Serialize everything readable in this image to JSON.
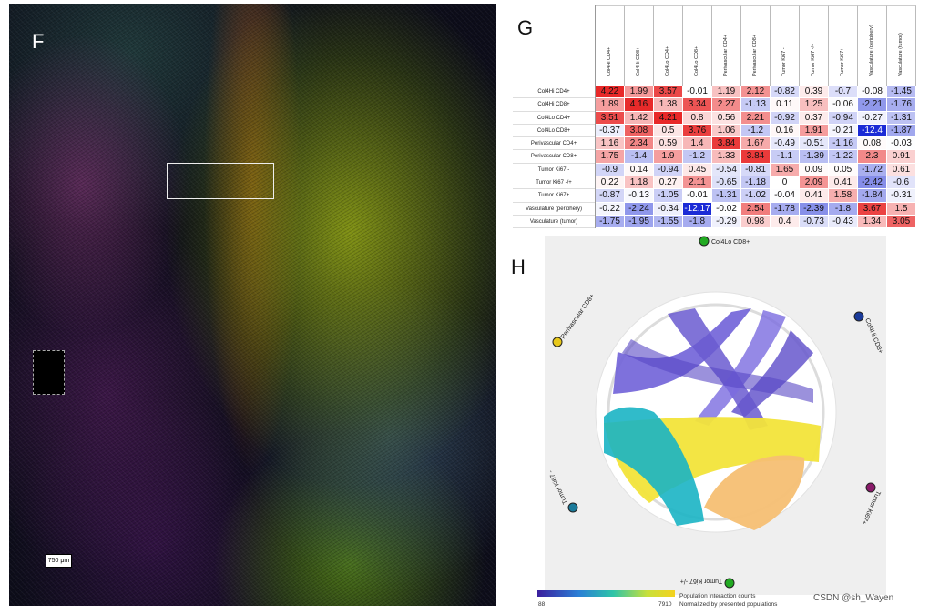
{
  "panel_f": {
    "letter": "F",
    "scale_bar": "750 μm"
  },
  "panel_g": {
    "letter": "G",
    "columns": [
      "Col4Hi CD4+",
      "Col4Hi CD8+",
      "Col4Lo CD4+",
      "Col4Lo CD8+",
      "Perivascular CD4+",
      "Perivascular CD8+",
      "Tumor Ki67 -",
      "Tumor Ki67 -/+",
      "Tumor Ki67+",
      "Vasculature (periphery)",
      "Vasculature (tumor)"
    ],
    "rows": [
      "Col4Hi CD4+",
      "Col4Hi CD8+",
      "Col4Lo CD4+",
      "Col4Lo CD8+",
      "Perivascular CD4+",
      "Perivascular CD8+",
      "Tumor Ki67 -",
      "Tumor Ki67 -/+",
      "Tumor Ki67+",
      "Vasculature (periphery)",
      "Vasculature (tumor)"
    ],
    "values": [
      [
        "4.22",
        "1.99",
        "3.57",
        "-0.01",
        "1.19",
        "2.12",
        "-0.82",
        "0.39",
        "-0.7",
        "-0.08",
        "-1.45"
      ],
      [
        "1.89",
        "4.16",
        "1.38",
        "3.34",
        "2.27",
        "-1.13",
        "0.11",
        "1.25",
        "-0.06",
        "-2.21",
        "-1.76"
      ],
      [
        "3.51",
        "1.42",
        "4.21",
        "0.8",
        "0.56",
        "2.21",
        "-0.92",
        "0.37",
        "-0.94",
        "-0.27",
        "-1.31"
      ],
      [
        "-0.37",
        "3.08",
        "0.5",
        "3.76",
        "1.06",
        "-1.2",
        "0.16",
        "1.91",
        "-0.21",
        "-12.4",
        "-1.87"
      ],
      [
        "1.16",
        "2.34",
        "0.59",
        "1.4",
        "3.84",
        "1.67",
        "-0.49",
        "-0.51",
        "-1.16",
        "0.08",
        "-0.03"
      ],
      [
        "1.75",
        "-1.4",
        "1.9",
        "-1.2",
        "1.33",
        "3.84",
        "-1.1",
        "-1.39",
        "-1.22",
        "2.3",
        "0.91"
      ],
      [
        "-0.9",
        "0.14",
        "-0.94",
        "0.45",
        "-0.54",
        "-0.81",
        "1.65",
        "0.09",
        "0.05",
        "-1.72",
        "0.61"
      ],
      [
        "0.22",
        "1.18",
        "0.27",
        "2.11",
        "-0.65",
        "-1.18",
        "0",
        "2.09",
        "0.41",
        "-2.42",
        "-0.6"
      ],
      [
        "-0.87",
        "-0.13",
        "-1.05",
        "-0.01",
        "-1.31",
        "-1.02",
        "-0.04",
        "0.41",
        "1.58",
        "-1.84",
        "-0.31"
      ],
      [
        "-0.22",
        "-2.24",
        "-0.34",
        "-12.17",
        "-0.02",
        "2.54",
        "-1.78",
        "-2.39",
        "-1.8",
        "3.67",
        "1.5"
      ],
      [
        "-1.75",
        "-1.95",
        "-1.55",
        "-1.8",
        "-0.29",
        "0.98",
        "0.4",
        "-0.73",
        "-0.43",
        "1.34",
        "3.05"
      ]
    ],
    "colors": {
      "positive": "#e8282b",
      "negative": "#1b2bd6",
      "neutral": "#ffffff"
    }
  },
  "panel_h": {
    "letter": "H",
    "nodes": [
      {
        "label": "Col4Lo CD8+",
        "color": "#22aa22"
      },
      {
        "label": "Col4Hi CD8+",
        "color": "#1a3a9a"
      },
      {
        "label": "Tumor Ki67+",
        "color": "#8a1a6a"
      },
      {
        "label": "Tumor Ki67 -/+",
        "color": "#22aa22"
      },
      {
        "label": "Tumor Ki67 -",
        "color": "#1a7a9a"
      },
      {
        "label": "Perivascular CD8+",
        "color": "#e8c81a"
      }
    ],
    "legend": {
      "min": "88",
      "max": "7910",
      "line1": "Population interaction counts",
      "line2": "Normalized by presented populations"
    }
  },
  "watermark": "CSDN @sh_Wayen"
}
